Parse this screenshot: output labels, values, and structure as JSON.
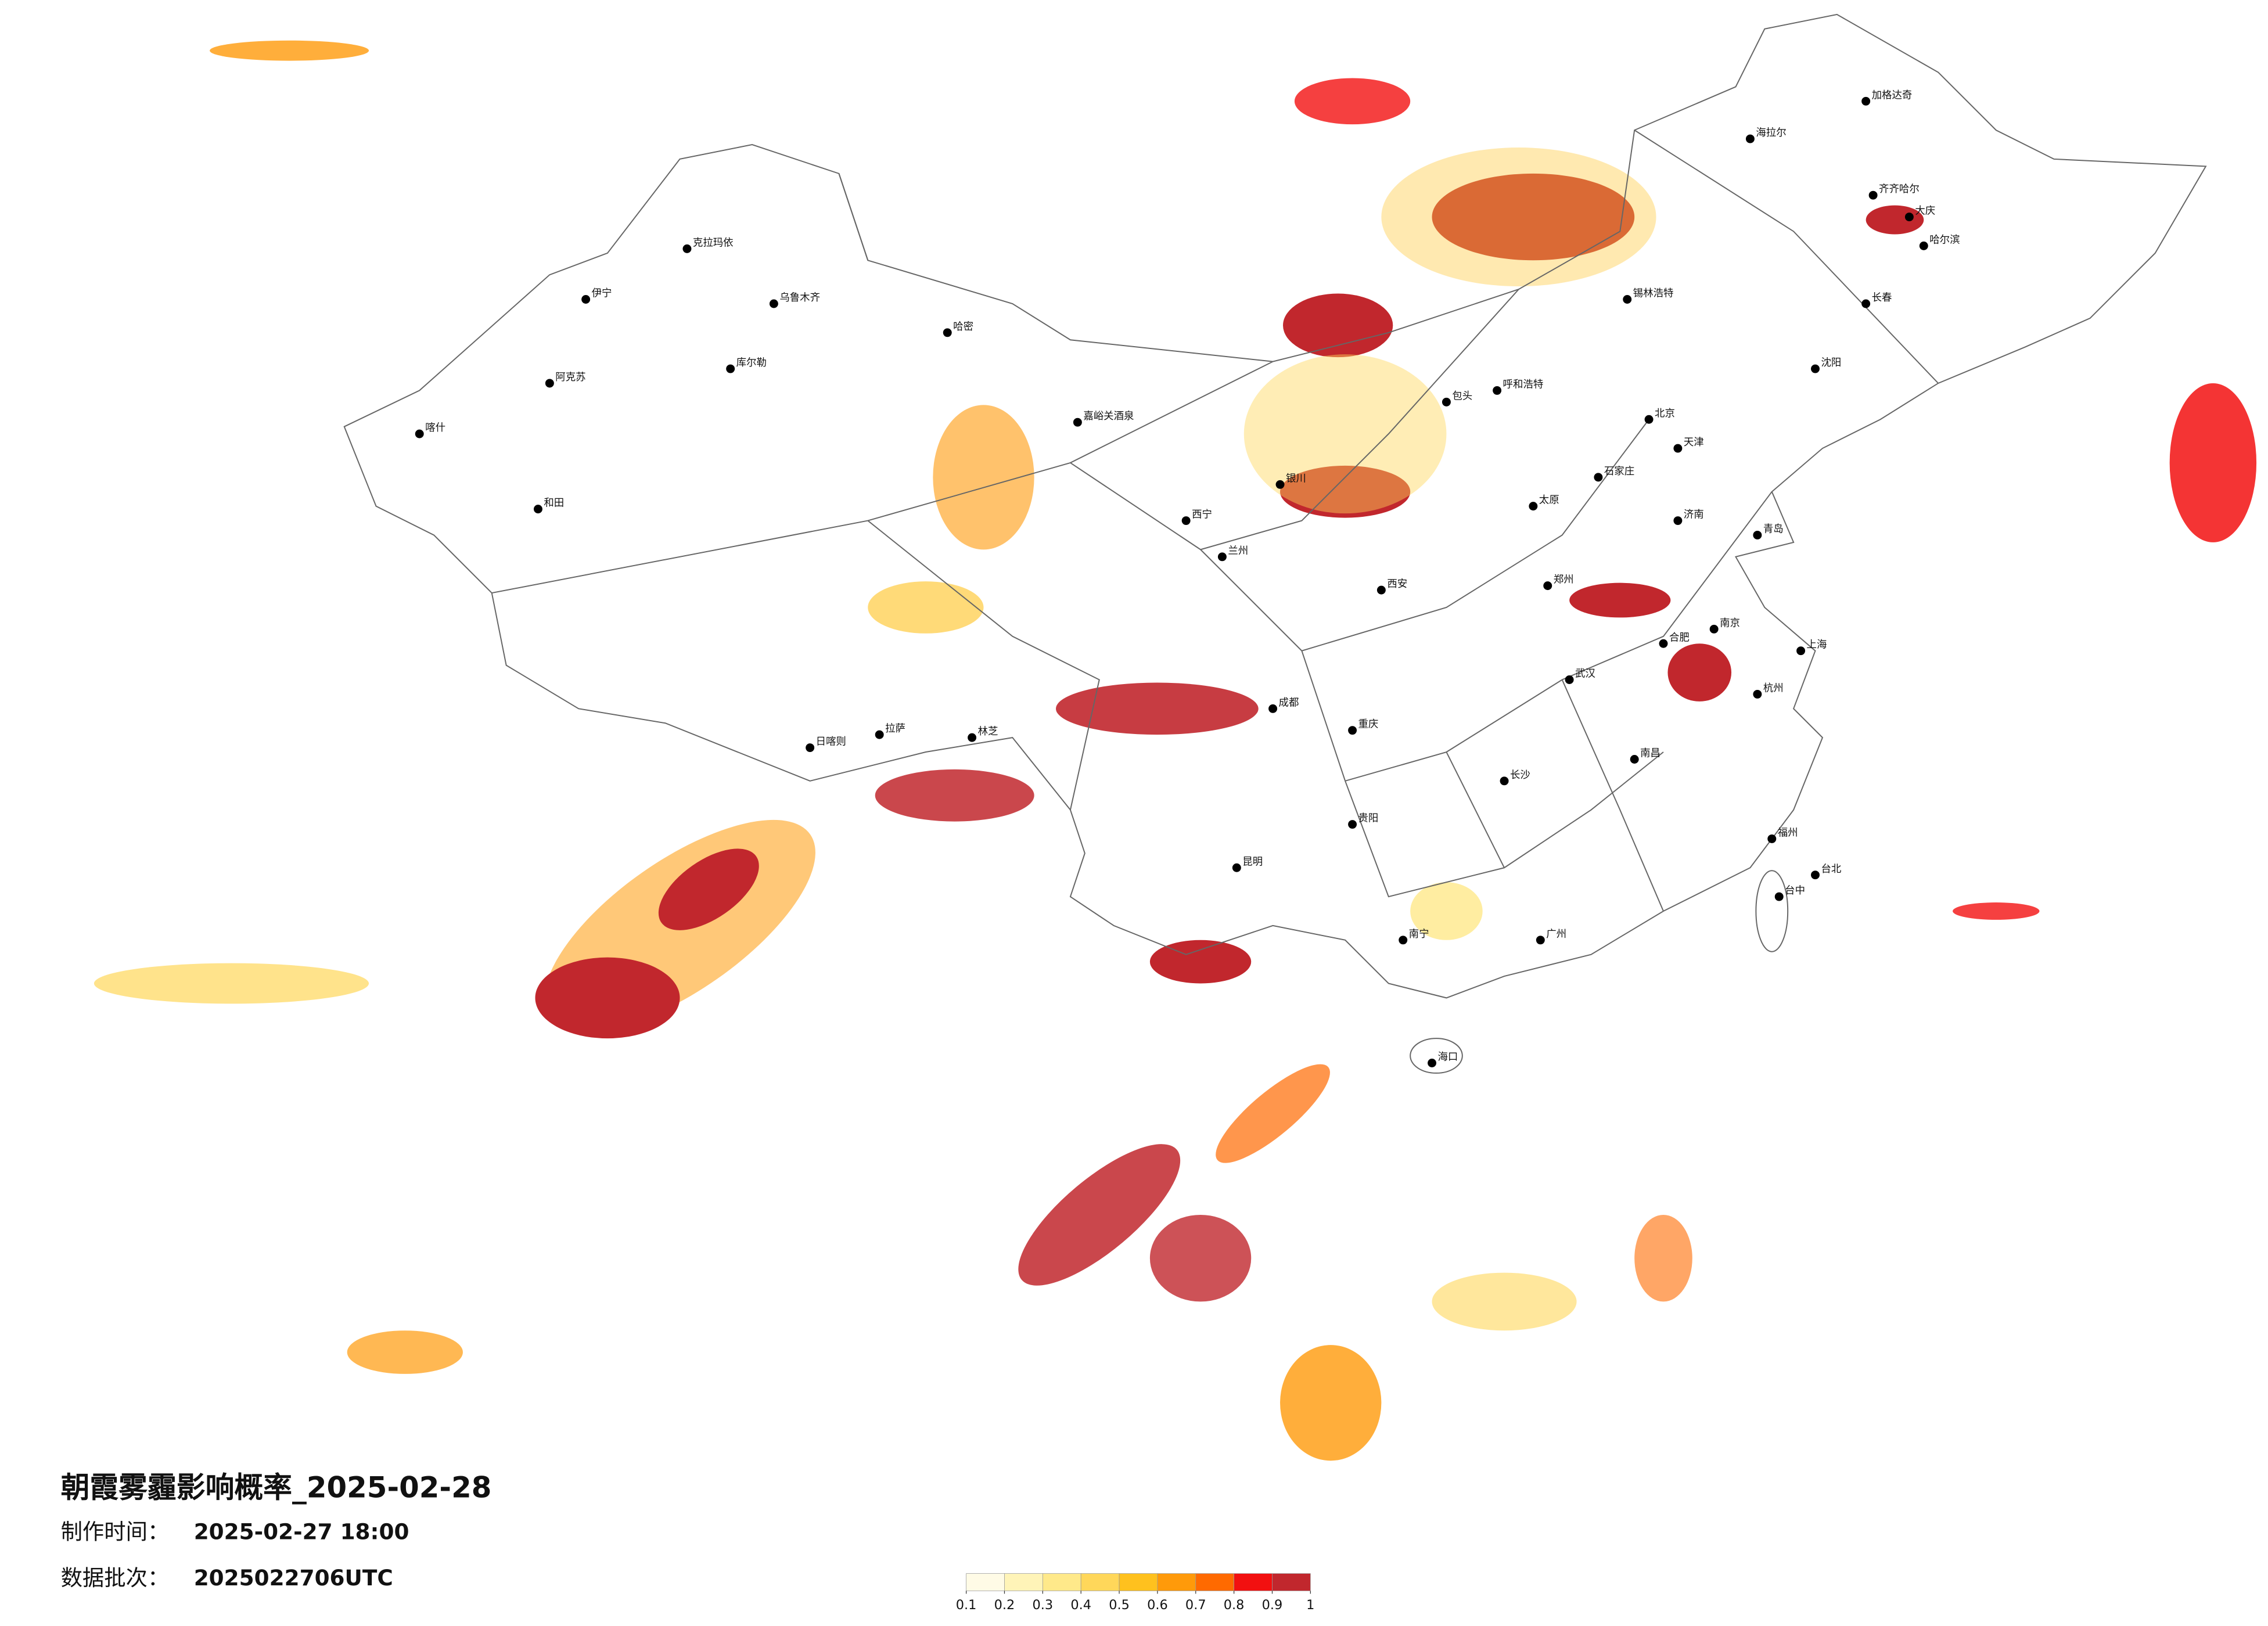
{
  "title": "朝霞雾霾影响概率_2025-02-28",
  "produced": {
    "label": "制作时间：",
    "value": "2025-02-27 18:00"
  },
  "batch": {
    "label": "数据批次：",
    "value": "2025022706UTC"
  },
  "legend": {
    "colors": [
      "#fffbe6",
      "#fff4b8",
      "#ffe98a",
      "#ffd75a",
      "#ffc11e",
      "#ff9a0a",
      "#ff6a00",
      "#f21010",
      "#c1272d"
    ],
    "ticks": [
      0.1,
      0.2,
      0.3,
      0.4,
      0.5,
      0.6,
      0.7,
      0.8,
      0.9,
      1
    ]
  },
  "cities": [
    "乌鲁木齐",
    "克拉玛依",
    "伊宁",
    "阿克苏",
    "喀什",
    "和田",
    "哈密",
    "库尔勒",
    "拉萨",
    "日喀则",
    "林芝",
    "嘉峪关酒泉",
    "西宁",
    "兰州",
    "银川",
    "呼和浩特",
    "包头",
    "北京",
    "天津",
    "石家庄",
    "太原",
    "济南",
    "郑州",
    "西安",
    "成都",
    "重庆",
    "贵阳",
    "昆明",
    "南宁",
    "广州",
    "长沙",
    "武汉",
    "南昌",
    "合肥",
    "南京",
    "上海",
    "杭州",
    "福州",
    "台北",
    "台中",
    "海口",
    "沈阳",
    "长春",
    "哈尔滨",
    "齐齐哈尔",
    "大庆",
    "加格达奇",
    "海拉尔",
    "锡林浩特",
    "青岛"
  ]
}
